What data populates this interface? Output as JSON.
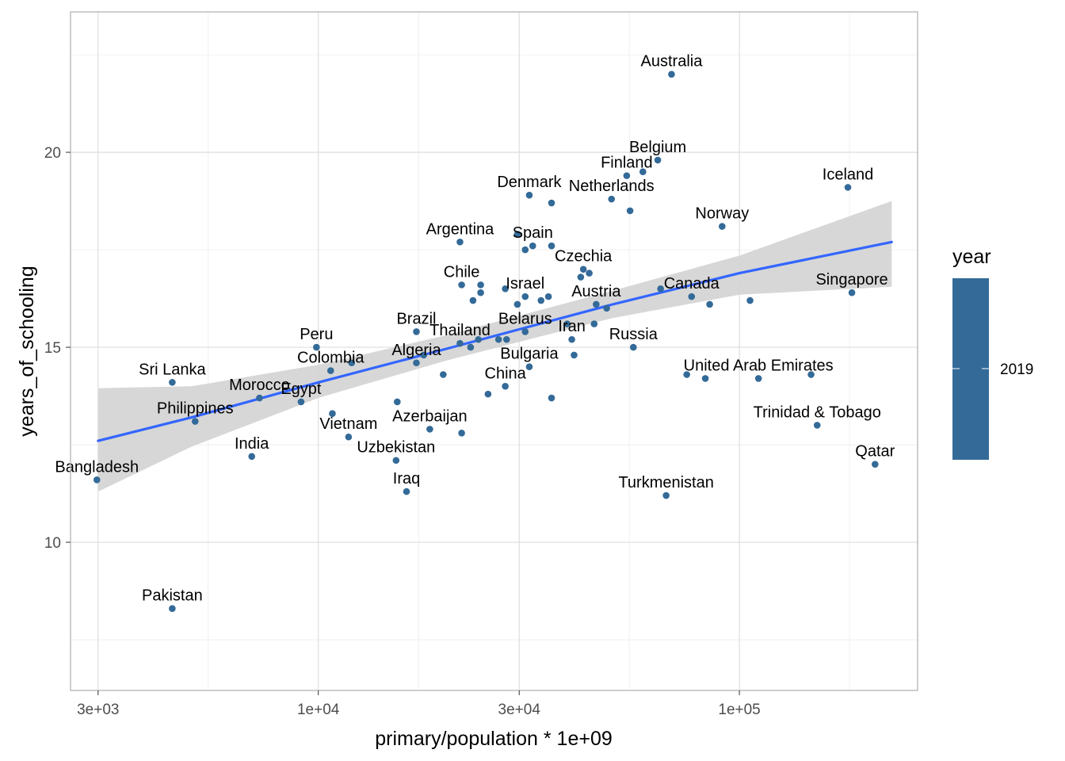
{
  "chart_data": {
    "type": "scatter",
    "xlabel": "primary/population * 1e+09",
    "ylabel": "years_of_schooling",
    "x_scale": "log10",
    "xlim": [
      2580,
      265000
    ],
    "ylim": [
      6.2,
      23.6
    ],
    "x_ticks": [
      {
        "value": 3000,
        "label": "3e+03"
      },
      {
        "value": 10000,
        "label": "1e+04"
      },
      {
        "value": 30000,
        "label": "3e+04"
      },
      {
        "value": 100000,
        "label": "1e+05"
      }
    ],
    "y_ticks": [
      {
        "value": 10,
        "label": "10"
      },
      {
        "value": 15,
        "label": "15"
      },
      {
        "value": 20,
        "label": "20"
      }
    ],
    "grid": true,
    "point_color": "#336A98",
    "trend": {
      "method": "linear regression with confidence band",
      "color": "#3366FF",
      "band_color": "#D3D3D3",
      "x": [
        3000,
        5000,
        10000,
        20000,
        50000,
        100000,
        230000
      ],
      "y": [
        12.6,
        13.2,
        14.1,
        14.95,
        16.1,
        16.9,
        17.7
      ],
      "band_lower": [
        11.3,
        12.45,
        13.7,
        14.65,
        15.75,
        16.35,
        16.55
      ],
      "band_upper": [
        13.95,
        14.0,
        14.55,
        15.3,
        16.45,
        17.35,
        18.75
      ]
    },
    "points": [
      {
        "label": "Australia",
        "x": 69000,
        "y": 22.0
      },
      {
        "label": "Belgium",
        "x": 64000,
        "y": 19.8
      },
      {
        "label": "Finland",
        "x": 54000,
        "y": 19.4
      },
      {
        "label": "",
        "x": 59000,
        "y": 19.5
      },
      {
        "label": "Iceland",
        "x": 181000,
        "y": 19.1
      },
      {
        "label": "Denmark",
        "x": 31700,
        "y": 18.9
      },
      {
        "label": "",
        "x": 35800,
        "y": 18.7
      },
      {
        "label": "Netherlands",
        "x": 49700,
        "y": 18.8
      },
      {
        "label": "",
        "x": 55000,
        "y": 18.5
      },
      {
        "label": "Norway",
        "x": 91000,
        "y": 18.1
      },
      {
        "label": "Argentina",
        "x": 21700,
        "y": 17.7
      },
      {
        "label": "Spain",
        "x": 32300,
        "y": 17.6
      },
      {
        "label": "",
        "x": 29700,
        "y": 17.9
      },
      {
        "label": "",
        "x": 31000,
        "y": 17.5
      },
      {
        "label": "",
        "x": 35800,
        "y": 17.6
      },
      {
        "label": "Czechia",
        "x": 42600,
        "y": 17.0
      },
      {
        "label": "",
        "x": 44000,
        "y": 16.9
      },
      {
        "label": "",
        "x": 42000,
        "y": 16.8
      },
      {
        "label": "Chile",
        "x": 21900,
        "y": 16.6
      },
      {
        "label": "",
        "x": 24300,
        "y": 16.6
      },
      {
        "label": "",
        "x": 23300,
        "y": 16.2
      },
      {
        "label": "",
        "x": 24300,
        "y": 16.4
      },
      {
        "label": "",
        "x": 27800,
        "y": 16.5
      },
      {
        "label": "",
        "x": 29700,
        "y": 16.1
      },
      {
        "label": "Israel",
        "x": 31000,
        "y": 16.3
      },
      {
        "label": "",
        "x": 33800,
        "y": 16.2
      },
      {
        "label": "",
        "x": 35200,
        "y": 16.3
      },
      {
        "label": "Austria",
        "x": 45700,
        "y": 16.1
      },
      {
        "label": "",
        "x": 48400,
        "y": 16.0
      },
      {
        "label": "",
        "x": 65000,
        "y": 16.5
      },
      {
        "label": "Canada",
        "x": 77000,
        "y": 16.3
      },
      {
        "label": "",
        "x": 85000,
        "y": 16.1
      },
      {
        "label": "",
        "x": 106000,
        "y": 16.2
      },
      {
        "label": "Singapore",
        "x": 185000,
        "y": 16.4
      },
      {
        "label": "Peru",
        "x": 9900,
        "y": 15.0
      },
      {
        "label": "Brazil",
        "x": 17100,
        "y": 15.4
      },
      {
        "label": "Belarus",
        "x": 31000,
        "y": 15.4
      },
      {
        "label": "",
        "x": 39000,
        "y": 15.6
      },
      {
        "label": "",
        "x": 45200,
        "y": 15.6
      },
      {
        "label": "Thailand",
        "x": 21700,
        "y": 15.1
      },
      {
        "label": "",
        "x": 23000,
        "y": 15.0
      },
      {
        "label": "",
        "x": 24000,
        "y": 15.2
      },
      {
        "label": "",
        "x": 26800,
        "y": 15.2
      },
      {
        "label": "",
        "x": 28000,
        "y": 15.2
      },
      {
        "label": "Iran",
        "x": 40000,
        "y": 15.2
      },
      {
        "label": "",
        "x": 40500,
        "y": 14.8
      },
      {
        "label": "Russia",
        "x": 56000,
        "y": 15.0
      },
      {
        "label": "Sri Lanka",
        "x": 4500,
        "y": 14.1
      },
      {
        "label": "Colombia",
        "x": 10700,
        "y": 14.4
      },
      {
        "label": "",
        "x": 12000,
        "y": 14.6
      },
      {
        "label": "Algeria",
        "x": 17100,
        "y": 14.6
      },
      {
        "label": "",
        "x": 17800,
        "y": 14.8
      },
      {
        "label": "",
        "x": 19800,
        "y": 14.3
      },
      {
        "label": "Bulgaria",
        "x": 31700,
        "y": 14.5
      },
      {
        "label": "China",
        "x": 27800,
        "y": 14.0
      },
      {
        "label": "",
        "x": 25300,
        "y": 13.8
      },
      {
        "label": "",
        "x": 35800,
        "y": 13.7
      },
      {
        "label": "",
        "x": 75000,
        "y": 14.3
      },
      {
        "label": "",
        "x": 83000,
        "y": 14.2
      },
      {
        "label": "United Arab Emirates",
        "x": 111000,
        "y": 14.2
      },
      {
        "label": "",
        "x": 148000,
        "y": 14.3
      },
      {
        "label": "Morocco",
        "x": 7250,
        "y": 13.7
      },
      {
        "label": "Egypt",
        "x": 9100,
        "y": 13.6
      },
      {
        "label": "",
        "x": 10800,
        "y": 13.3
      },
      {
        "label": "Philippines",
        "x": 5100,
        "y": 13.1
      },
      {
        "label": "Vietnam",
        "x": 11800,
        "y": 12.7
      },
      {
        "label": "",
        "x": 15400,
        "y": 13.6
      },
      {
        "label": "Azerbaijan",
        "x": 18400,
        "y": 12.9
      },
      {
        "label": "",
        "x": 21900,
        "y": 12.8
      },
      {
        "label": "Trinidad & Tobago",
        "x": 153000,
        "y": 13.0
      },
      {
        "label": "India",
        "x": 6950,
        "y": 12.2
      },
      {
        "label": "Uzbekistan",
        "x": 15300,
        "y": 12.1
      },
      {
        "label": "Bangladesh",
        "x": 2980,
        "y": 11.6
      },
      {
        "label": "Iraq",
        "x": 16200,
        "y": 11.3
      },
      {
        "label": "Turkmenistan",
        "x": 67000,
        "y": 11.2
      },
      {
        "label": "Qatar",
        "x": 210000,
        "y": 12.0
      },
      {
        "label": "Pakistan",
        "x": 4500,
        "y": 8.3
      }
    ],
    "legend": {
      "title": "year",
      "label": "2019",
      "placement": "right",
      "color": "#336A98"
    }
  }
}
